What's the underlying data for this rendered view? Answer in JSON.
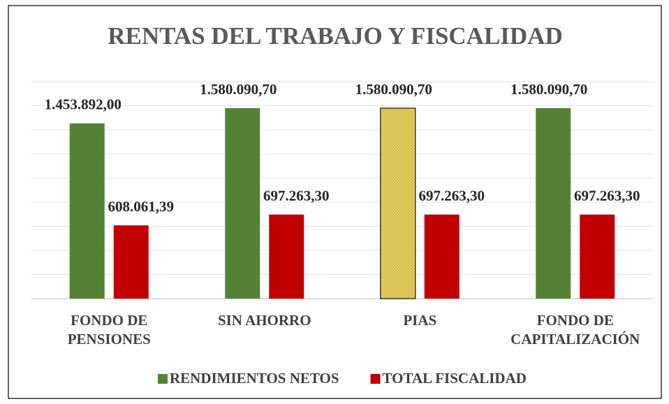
{
  "chart_data": {
    "type": "bar",
    "title": "RENTAS DEL TRABAJO Y FISCALIDAD",
    "categories": [
      "FONDO DE PENSIONES",
      "SIN AHORRO",
      "PIAS",
      "FONDO DE CAPITALIZACIÓN"
    ],
    "series": [
      {
        "name": "RENDIMIENTOS NETOS",
        "color": "#548235",
        "point_colors": [
          "#548235",
          "#548235",
          "#e8cf62",
          "#548235"
        ],
        "values": [
          1453892.0,
          1580090.7,
          1580090.7,
          1580090.7
        ],
        "value_labels": [
          "1.453.892,00",
          "1.580.090,70",
          "1.580.090,70",
          "1.580.090,70"
        ]
      },
      {
        "name": "TOTAL FISCALIDAD",
        "color": "#c00000",
        "values": [
          608061.39,
          697263.3,
          697263.3,
          697263.3
        ],
        "value_labels": [
          "608.061,39",
          "697.263,30",
          "697.263,30",
          "697.263,30"
        ]
      }
    ],
    "ylim": [
      0,
      1800000
    ],
    "yticks": [
      0,
      200000,
      400000,
      600000,
      800000,
      1000000,
      1200000,
      1400000,
      1600000,
      1800000
    ],
    "grid": true,
    "legend": "bottom"
  }
}
